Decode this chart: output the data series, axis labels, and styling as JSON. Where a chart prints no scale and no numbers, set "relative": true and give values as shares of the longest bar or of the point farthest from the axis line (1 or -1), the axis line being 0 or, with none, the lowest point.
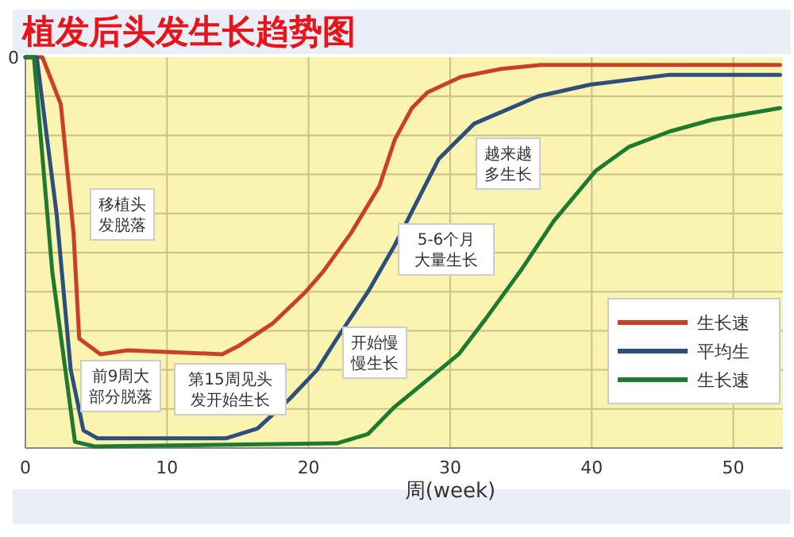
{
  "chart_data": {
    "type": "line",
    "title": "植发后头发生长趋势图",
    "xlabel": "周(week)",
    "relative": true,
    "xlim": [
      0,
      53.5
    ],
    "xticks": [
      0,
      10,
      20,
      30,
      40,
      50
    ],
    "grid": true,
    "legend": "bottom right",
    "marker": "none",
    "line_style": "solid",
    "series": [
      {
        "name": "生长速",
        "color": "#c8402a",
        "x": [
          0,
          1.2,
          2.5,
          3.4,
          3.8,
          5.3,
          7.2,
          13.9,
          15,
          17.5,
          19.8,
          21,
          23,
          25,
          26.1,
          27.3,
          28.4,
          30.8,
          33.6,
          36.4,
          53.3
        ],
        "values": [
          1,
          1,
          0.88,
          0.55,
          0.28,
          0.24,
          0.25,
          0.24,
          0.26,
          0.32,
          0.4,
          0.45,
          0.55,
          0.67,
          0.79,
          0.87,
          0.91,
          0.95,
          0.97,
          0.98,
          0.98
        ]
      },
      {
        "name": "平均生",
        "color": "#2c4f7c",
        "x": [
          0,
          0.8,
          2.2,
          3.2,
          4.1,
          5.1,
          14.2,
          16.4,
          18.7,
          20.6,
          22,
          24.2,
          26.1,
          29.2,
          31.7,
          36.2,
          39.9,
          45.5,
          53.3
        ],
        "values": [
          1,
          1,
          0.6,
          0.2,
          0.045,
          0.025,
          0.025,
          0.05,
          0.127,
          0.2,
          0.28,
          0.4,
          0.52,
          0.74,
          0.83,
          0.9,
          0.93,
          0.955,
          0.955
        ]
      },
      {
        "name": "生长速",
        "color": "#1e7a2e",
        "x": [
          0,
          0.6,
          1.9,
          3.5,
          4.9,
          22,
          24.2,
          26.1,
          30.6,
          32.5,
          35.1,
          37.3,
          40.3,
          42.6,
          45.5,
          48.5,
          53.3
        ],
        "values": [
          1,
          1,
          0.45,
          0.016,
          0.004,
          0.012,
          0.036,
          0.106,
          0.24,
          0.33,
          0.46,
          0.58,
          0.71,
          0.77,
          0.81,
          0.84,
          0.87
        ]
      }
    ],
    "annotations": [
      "0",
      "移植头发脱落",
      "前9周大部分脱落",
      "第15周见头发开始生长",
      "开始慢慢生长",
      "5-6个月大量生长",
      "越来越多生长"
    ]
  }
}
